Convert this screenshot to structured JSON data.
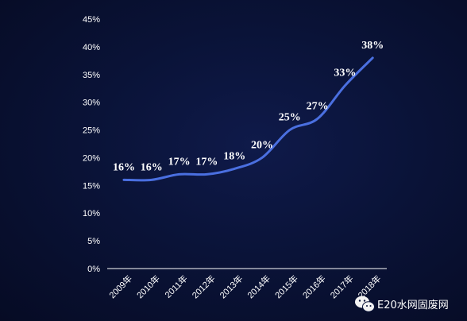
{
  "chart_data": {
    "type": "line",
    "categories": [
      "2009年",
      "2010年",
      "2011年",
      "2012年",
      "2013年",
      "2014年",
      "2015年",
      "2016年",
      "2017年",
      "2018年"
    ],
    "series": [
      {
        "values": [
          16,
          16,
          17,
          17,
          18,
          20,
          25,
          27,
          33,
          38
        ],
        "labels": [
          "16%",
          "16%",
          "17%",
          "17%",
          "18%",
          "20%",
          "25%",
          "27%",
          "33%",
          "38%"
        ],
        "color": "#4a6fe0"
      }
    ],
    "y_ticks": [
      "0%",
      "5%",
      "10%",
      "15%",
      "20%",
      "25%",
      "30%",
      "35%",
      "40%",
      "45%"
    ],
    "ylim": [
      0,
      45
    ],
    "grid": false,
    "axis_color": "#ffffff"
  },
  "watermark": {
    "text": "E20水网固废网",
    "icon": "wechat-icon"
  }
}
